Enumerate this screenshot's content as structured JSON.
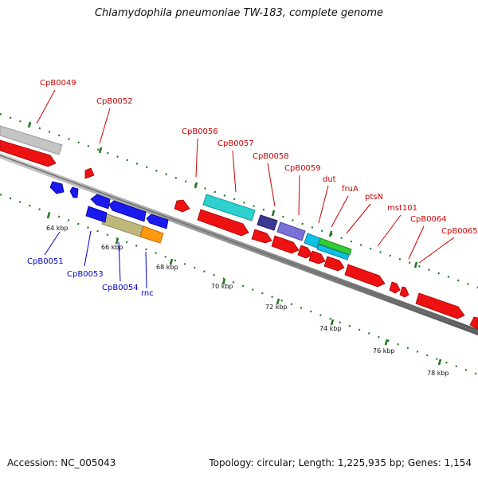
{
  "title": "Chlamydophila pneumoniae TW-183, complete genome",
  "accession": "Accession: NC_005043",
  "topology": "Topology: circular; Length: 1,225,935 bp; Genes: 1,154",
  "colors": {
    "forward_label": "#cc0000",
    "reverse_label": "#0000cc",
    "backbone": "#7a7a7a",
    "tick": "#227722"
  },
  "scale_labels": [
    {
      "label": "64 kbp"
    },
    {
      "label": "66 kbp"
    },
    {
      "label": "68 kbp"
    },
    {
      "label": "70 kbp"
    },
    {
      "label": "72 kbp"
    },
    {
      "label": "74 kbp"
    },
    {
      "label": "76 kbp"
    },
    {
      "label": "78 kbp"
    }
  ],
  "forward_gene_labels": [
    "CpB0049",
    "CpB0052",
    "CpB0056",
    "CpB0057",
    "CpB0058",
    "CpB0059",
    "dut",
    "fruA",
    "ptsN",
    "mst101",
    "CpB0064",
    "CpB0065"
  ],
  "reverse_gene_labels": [
    "CpB0051",
    "CpB0053",
    "CpB0054",
    "rnc"
  ]
}
